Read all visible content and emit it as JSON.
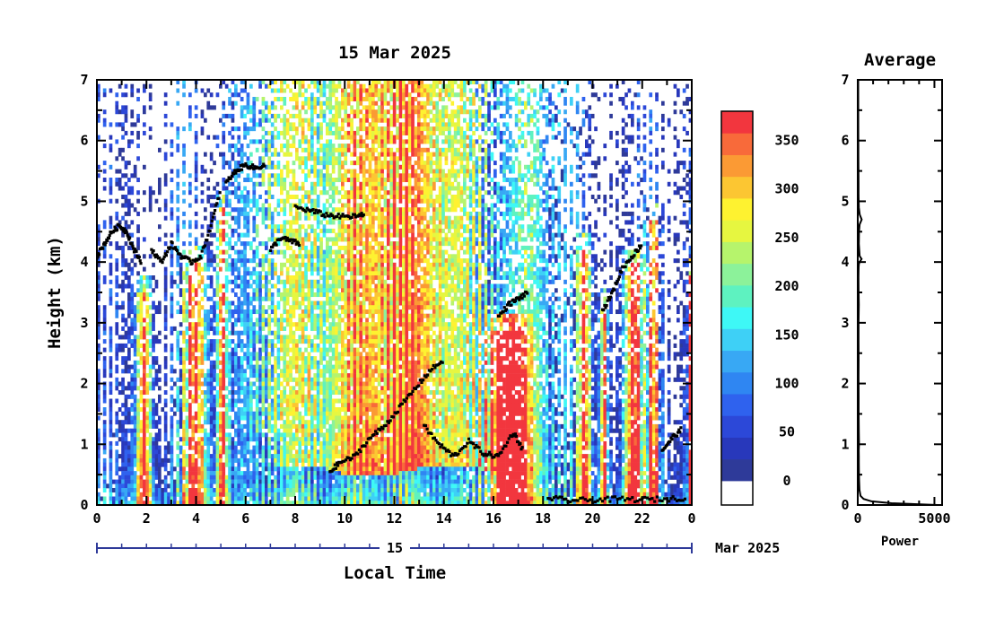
{
  "chart_data": [
    {
      "type": "heatmap",
      "title": "15 Mar 2025",
      "xlabel": "Local Time",
      "ylabel": "Height (km)",
      "x_tick_labels": [
        "0",
        "2",
        "4",
        "6",
        "8",
        "10",
        "12",
        "14",
        "16",
        "18",
        "20",
        "22",
        "0"
      ],
      "y_tick_labels": [
        "0",
        "1",
        "2",
        "3",
        "4",
        "5",
        "6",
        "7"
      ],
      "xlim": [
        0,
        24
      ],
      "ylim": [
        0,
        7
      ],
      "day_label": "15",
      "month_label": "Mar 2025",
      "colorbar": {
        "tick_labels": [
          "0",
          "50",
          "100",
          "150",
          "200",
          "250",
          "300",
          "350"
        ],
        "range": [
          -25,
          380
        ],
        "colors": [
          "#ffffff",
          "#2e3a99",
          "#2838bb",
          "#2c48d8",
          "#2f62ee",
          "#2f86f2",
          "#38a8f4",
          "#3ed0f6",
          "#3ef8f6",
          "#5ef2c0",
          "#8cf29a",
          "#b6f46c",
          "#e6f640",
          "#fef230",
          "#fcc632",
          "#fb9a34",
          "#f86a3a",
          "#f2363e"
        ]
      },
      "cloud_layers": [
        {
          "x": [
            0.0,
            0.3,
            0.6,
            0.9,
            1.2,
            1.5,
            1.8
          ],
          "y": [
            4.1,
            4.3,
            4.5,
            4.6,
            4.5,
            4.2,
            4.0
          ]
        },
        {
          "x": [
            2.2,
            2.6,
            3.0,
            3.4,
            3.8,
            4.2,
            4.6,
            5.0
          ],
          "y": [
            4.2,
            4.0,
            4.3,
            4.1,
            4.0,
            4.1,
            4.6,
            5.2
          ]
        },
        {
          "x": [
            5.2,
            5.6,
            6.0,
            6.4,
            6.8
          ],
          "y": [
            5.3,
            5.5,
            5.6,
            5.55,
            5.6
          ]
        },
        {
          "x": [
            7.0,
            7.4,
            7.8,
            8.2
          ],
          "y": [
            4.2,
            4.4,
            4.35,
            4.3
          ]
        },
        {
          "x": [
            8.0,
            8.6,
            9.2,
            9.8,
            10.4,
            10.8
          ],
          "y": [
            4.9,
            4.85,
            4.78,
            4.75,
            4.75,
            4.78
          ]
        },
        {
          "x": [
            9.4,
            9.8,
            10.4,
            11.0,
            11.6,
            12.2,
            12.8,
            13.4,
            14.0
          ],
          "y": [
            0.55,
            0.7,
            0.8,
            1.1,
            1.3,
            1.6,
            1.9,
            2.2,
            2.4
          ]
        },
        {
          "x": [
            13.2,
            13.8,
            14.4,
            15.0,
            15.6,
            16.2,
            16.8,
            17.2
          ],
          "y": [
            1.3,
            1.0,
            0.8,
            1.05,
            0.85,
            0.8,
            1.2,
            0.9
          ]
        },
        {
          "x": [
            16.2,
            16.6,
            17.0,
            17.4
          ],
          "y": [
            3.1,
            3.3,
            3.4,
            3.5
          ]
        },
        {
          "x": [
            18.2,
            19.0,
            20.0,
            21.0,
            22.0,
            23.0,
            23.8
          ],
          "y": [
            0.12,
            0.08,
            0.08,
            0.1,
            0.09,
            0.1,
            0.12
          ]
        },
        {
          "x": [
            20.4,
            20.8,
            21.2,
            21.6,
            22.0
          ],
          "y": [
            3.2,
            3.5,
            3.9,
            4.1,
            4.3
          ]
        },
        {
          "x": [
            22.8,
            23.2,
            23.6
          ],
          "y": [
            0.9,
            1.1,
            1.25
          ]
        }
      ]
    },
    {
      "type": "line",
      "title": "Average",
      "xlabel": "Power",
      "x_tick_labels": [
        "0",
        "5000"
      ],
      "y_tick_labels": [
        "0",
        "1",
        "2",
        "3",
        "4",
        "5",
        "6",
        "7"
      ],
      "xlim": [
        0,
        5500
      ],
      "ylim": [
        0,
        7
      ],
      "series": [
        {
          "x": [
            5200,
            2200,
            900,
            380,
            180,
            110,
            90,
            75,
            70,
            68,
            65,
            80,
            70,
            60,
            60,
            55,
            60,
            50,
            55,
            70,
            55,
            45,
            50,
            60,
            75,
            120,
            250,
            120,
            70,
            80,
            120,
            260,
            130,
            70,
            55,
            50,
            45,
            40,
            35,
            30
          ],
          "y": [
            0.0,
            0.03,
            0.06,
            0.1,
            0.15,
            0.25,
            0.4,
            0.55,
            0.7,
            0.8,
            0.9,
            1.0,
            1.2,
            1.5,
            1.8,
            2.1,
            2.4,
            2.7,
            3.0,
            3.3,
            3.55,
            3.75,
            3.85,
            3.92,
            3.97,
            4.0,
            4.05,
            4.1,
            4.3,
            4.5,
            4.62,
            4.7,
            4.78,
            4.9,
            5.1,
            5.3,
            5.5,
            5.7,
            6.2,
            7.0
          ]
        }
      ]
    }
  ]
}
